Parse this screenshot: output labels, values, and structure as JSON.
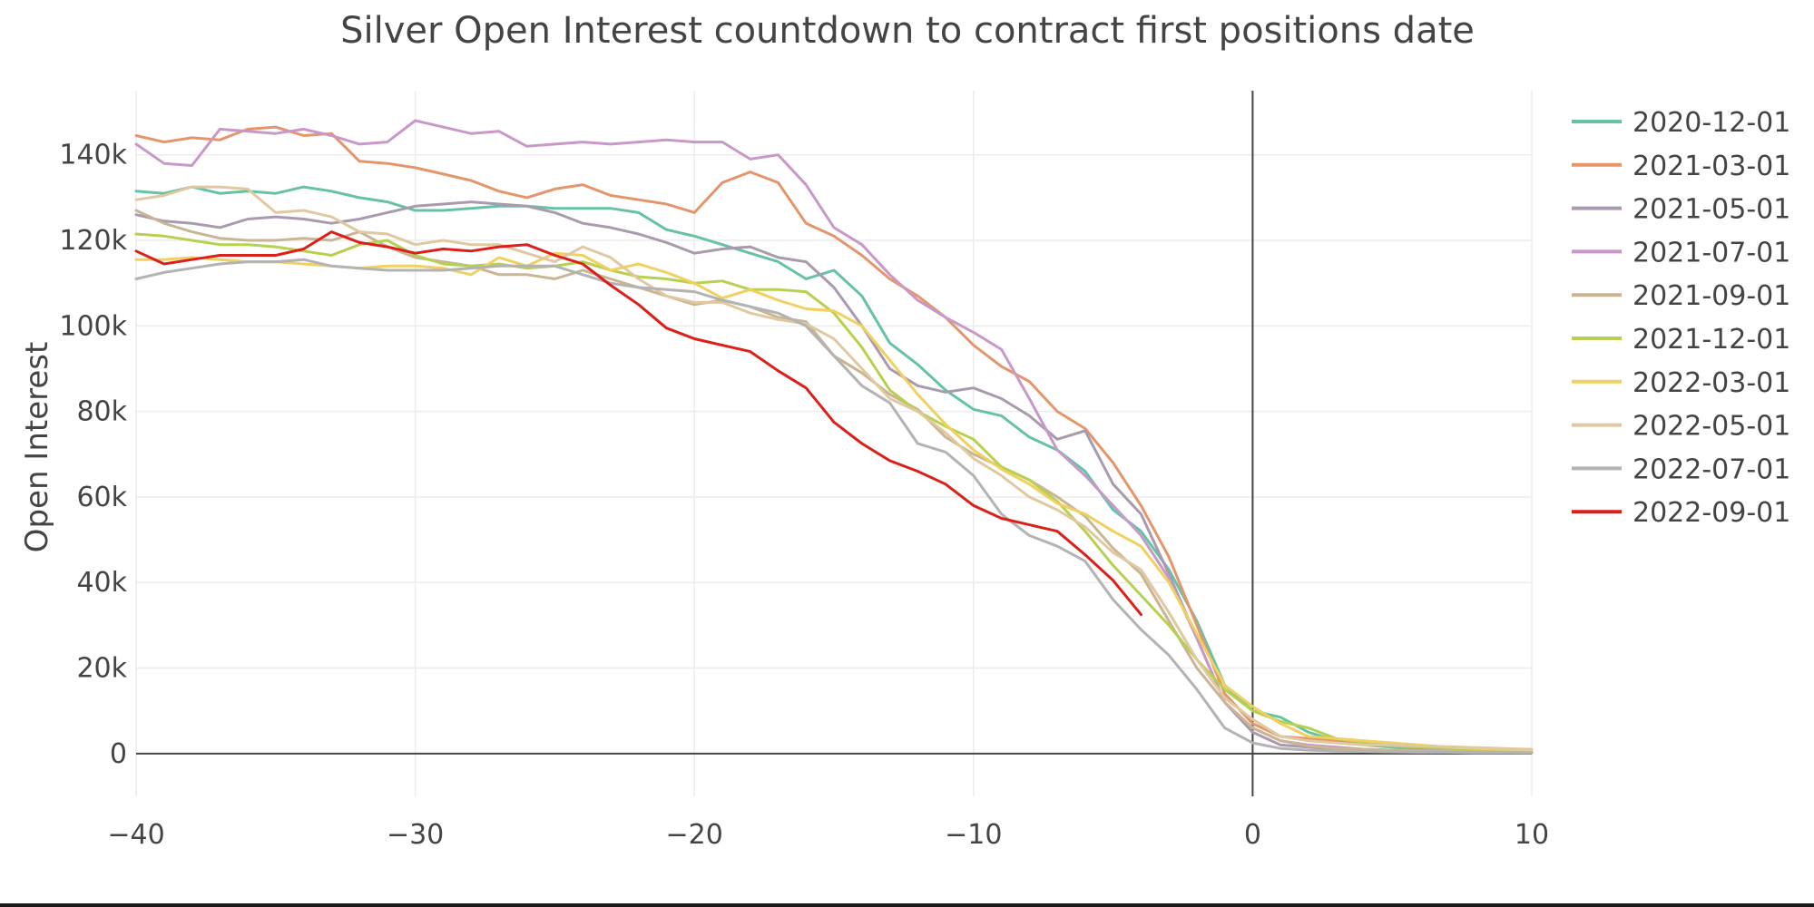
{
  "chart_data": {
    "type": "line",
    "title": "Silver Open Interest countdown to contract first positions date",
    "xlabel": "",
    "ylabel": "Open Interest",
    "xlim": [
      -40,
      10
    ],
    "ylim": [
      -10000,
      155000
    ],
    "x_ticks": [
      -40,
      -30,
      -20,
      -10,
      0,
      10
    ],
    "x_tick_labels": [
      "−40",
      "−30",
      "−20",
      "−10",
      "0",
      "10"
    ],
    "y_ticks": [
      0,
      20000,
      40000,
      60000,
      80000,
      100000,
      120000,
      140000
    ],
    "y_tick_labels": [
      "0",
      "20k",
      "40k",
      "60k",
      "80k",
      "100k",
      "120k",
      "140k"
    ],
    "grid": true,
    "legend_position": "right",
    "series": [
      {
        "name": "2020-12-01",
        "color": "#66c2a5",
        "x": [
          -40,
          -39,
          -38,
          -37,
          -36,
          -35,
          -34,
          -33,
          -32,
          -31,
          -30,
          -29,
          -28,
          -27,
          -26,
          -25,
          -24,
          -23,
          -22,
          -21,
          -20,
          -19,
          -18,
          -17,
          -16,
          -15,
          -14,
          -13,
          -12,
          -11,
          -10,
          -9,
          -8,
          -7,
          -6,
          -5,
          -4,
          -3,
          -2,
          -1,
          0,
          1,
          2,
          3,
          4,
          5,
          6,
          7,
          8,
          9,
          10
        ],
        "y": [
          131500,
          131000,
          132500,
          131000,
          131500,
          131000,
          132500,
          131500,
          130000,
          129000,
          127000,
          127000,
          127500,
          128000,
          128000,
          127500,
          127500,
          127500,
          126500,
          122500,
          121000,
          119000,
          117000,
          115000,
          111000,
          113000,
          107000,
          96000,
          91000,
          85000,
          80500,
          79000,
          74000,
          71000,
          66000,
          57000,
          52000,
          43000,
          31000,
          16000,
          10000,
          8500,
          5000,
          3000,
          2000,
          1500,
          1000,
          800,
          700,
          600,
          500
        ]
      },
      {
        "name": "2021-03-01",
        "color": "#e5956a",
        "x": [
          -40,
          -39,
          -38,
          -37,
          -36,
          -35,
          -34,
          -33,
          -32,
          -31,
          -30,
          -29,
          -28,
          -27,
          -26,
          -25,
          -24,
          -23,
          -22,
          -21,
          -20,
          -19,
          -18,
          -17,
          -16,
          -15,
          -14,
          -13,
          -12,
          -11,
          -10,
          -9,
          -8,
          -7,
          -6,
          -5,
          -4,
          -3,
          -2,
          -1,
          0,
          1,
          2,
          3,
          4,
          5,
          6,
          7,
          8,
          9,
          10
        ],
        "y": [
          144500,
          143000,
          144000,
          143500,
          146000,
          146500,
          144500,
          145000,
          138500,
          138000,
          137000,
          135500,
          134000,
          131500,
          130000,
          132000,
          133000,
          130500,
          129500,
          128500,
          126500,
          133500,
          136000,
          133500,
          124000,
          121000,
          116500,
          111000,
          107000,
          102000,
          95500,
          90500,
          87000,
          80000,
          76000,
          68000,
          58000,
          46000,
          30000,
          14000,
          7000,
          4000,
          3500,
          3000,
          2500,
          2000,
          1800,
          1500,
          1200,
          1000,
          800
        ]
      },
      {
        "name": "2021-05-01",
        "color": "#a99aae",
        "x": [
          -40,
          -39,
          -38,
          -37,
          -36,
          -35,
          -34,
          -33,
          -32,
          -31,
          -30,
          -29,
          -28,
          -27,
          -26,
          -25,
          -24,
          -23,
          -22,
          -21,
          -20,
          -19,
          -18,
          -17,
          -16,
          -15,
          -14,
          -13,
          -12,
          -11,
          -10,
          -9,
          -8,
          -7,
          -6,
          -5,
          -4,
          -3,
          -2,
          -1,
          0,
          1,
          2,
          3,
          4,
          5,
          6,
          7,
          8,
          9,
          10
        ],
        "y": [
          126000,
          124500,
          124000,
          123000,
          125000,
          125500,
          125000,
          124000,
          125000,
          126500,
          128000,
          128500,
          129000,
          128500,
          128000,
          126500,
          124000,
          123000,
          121500,
          119500,
          117000,
          118000,
          118500,
          116000,
          115000,
          109000,
          100000,
          90000,
          86000,
          84500,
          85500,
          83000,
          79000,
          73500,
          75500,
          63000,
          56000,
          42000,
          27000,
          12000,
          5000,
          2000,
          1500,
          1000,
          800,
          700,
          600,
          500,
          400,
          300,
          200
        ]
      },
      {
        "name": "2021-07-01",
        "color": "#c898c8",
        "x": [
          -40,
          -39,
          -38,
          -37,
          -36,
          -35,
          -34,
          -33,
          -32,
          -31,
          -30,
          -29,
          -28,
          -27,
          -26,
          -25,
          -24,
          -23,
          -22,
          -21,
          -20,
          -19,
          -18,
          -17,
          -16,
          -15,
          -14,
          -13,
          -12,
          -11,
          -10,
          -9,
          -8,
          -7,
          -6,
          -5,
          -4,
          -3,
          -2,
          -1,
          0,
          1,
          2,
          3,
          4,
          5,
          6,
          7,
          8,
          9,
          10
        ],
        "y": [
          142500,
          138000,
          137500,
          146000,
          145500,
          145000,
          146000,
          144500,
          142500,
          143000,
          148000,
          146500,
          145000,
          145500,
          142000,
          142500,
          143000,
          142500,
          143000,
          143500,
          143000,
          143000,
          139000,
          140000,
          133000,
          123000,
          119000,
          112000,
          106000,
          102000,
          98500,
          94500,
          83000,
          71000,
          65000,
          58000,
          51000,
          41000,
          27000,
          12000,
          6000,
          3000,
          2000,
          1500,
          1000,
          800,
          700,
          600,
          500,
          400,
          300
        ]
      },
      {
        "name": "2021-09-01",
        "color": "#c9b594",
        "x": [
          -40,
          -39,
          -38,
          -37,
          -36,
          -35,
          -34,
          -33,
          -32,
          -31,
          -30,
          -29,
          -28,
          -27,
          -26,
          -25,
          -24,
          -23,
          -22,
          -21,
          -20,
          -19,
          -18,
          -17,
          -16,
          -15,
          -14,
          -13,
          -12,
          -11,
          -10,
          -9,
          -8,
          -7,
          -6,
          -5,
          -4,
          -3,
          -2,
          -1,
          0,
          1,
          2,
          3,
          4,
          5,
          6,
          7,
          8,
          9,
          10
        ],
        "y": [
          127000,
          124000,
          122000,
          120500,
          120000,
          120000,
          120500,
          120000,
          122000,
          118500,
          116000,
          115000,
          114000,
          112000,
          112000,
          111000,
          113000,
          111000,
          109000,
          107000,
          105000,
          106000,
          104500,
          102000,
          101000,
          93000,
          89000,
          84000,
          80500,
          74000,
          70000,
          67000,
          64000,
          60000,
          55500,
          48000,
          42000,
          31000,
          20000,
          12000,
          6000,
          3000,
          1800,
          1200,
          1000,
          800,
          600,
          500,
          400,
          300,
          200
        ]
      },
      {
        "name": "2021-12-01",
        "color": "#b6d14f",
        "x": [
          -40,
          -39,
          -38,
          -37,
          -36,
          -35,
          -34,
          -33,
          -32,
          -31,
          -30,
          -29,
          -28,
          -27,
          -26,
          -25,
          -24,
          -23,
          -22,
          -21,
          -20,
          -19,
          -18,
          -17,
          -16,
          -15,
          -14,
          -13,
          -12,
          -11,
          -10,
          -9,
          -8,
          -7,
          -6,
          -5,
          -4,
          -3,
          -2,
          -1,
          0,
          1,
          2,
          3,
          4,
          5,
          6,
          7,
          8,
          9,
          10
        ],
        "y": [
          121500,
          121000,
          120000,
          119000,
          119000,
          118500,
          117500,
          116500,
          119000,
          120000,
          116500,
          114500,
          114000,
          114500,
          113500,
          114000,
          115000,
          113000,
          111500,
          111000,
          110000,
          110500,
          108500,
          108500,
          108000,
          103000,
          95000,
          85000,
          80000,
          76500,
          73500,
          67000,
          64000,
          59000,
          52000,
          44000,
          37000,
          30000,
          22000,
          15000,
          10000,
          7500,
          6000,
          3500,
          2500,
          1800,
          1500,
          1200,
          1000,
          800,
          600
        ]
      },
      {
        "name": "2022-03-01",
        "color": "#f0d060",
        "x": [
          -40,
          -39,
          -38,
          -37,
          -36,
          -35,
          -34,
          -33,
          -32,
          -31,
          -30,
          -29,
          -28,
          -27,
          -26,
          -25,
          -24,
          -23,
          -22,
          -21,
          -20,
          -19,
          -18,
          -17,
          -16,
          -15,
          -14,
          -13,
          -12,
          -11,
          -10,
          -9,
          -8,
          -7,
          -6,
          -5,
          -4,
          -3,
          -2,
          -1,
          0,
          1,
          2,
          3,
          4,
          5,
          6,
          7,
          8,
          9,
          10
        ],
        "y": [
          115500,
          115500,
          116000,
          115500,
          115000,
          115000,
          114500,
          114000,
          113500,
          114000,
          114000,
          113500,
          112000,
          116000,
          114000,
          117000,
          116500,
          113000,
          114500,
          112500,
          110000,
          106500,
          108500,
          106000,
          104000,
          103500,
          100000,
          92000,
          84000,
          77000,
          71000,
          66500,
          63000,
          58500,
          56000,
          52000,
          48500,
          40000,
          28000,
          16000,
          11000,
          7000,
          4000,
          3500,
          3000,
          2500,
          2000,
          1500,
          1200,
          1000,
          800
        ]
      },
      {
        "name": "2022-05-01",
        "color": "#e0c8a0",
        "x": [
          -40,
          -39,
          -38,
          -37,
          -36,
          -35,
          -34,
          -33,
          -32,
          -31,
          -30,
          -29,
          -28,
          -27,
          -26,
          -25,
          -24,
          -23,
          -22,
          -21,
          -20,
          -19,
          -18,
          -17,
          -16,
          -15,
          -14,
          -13,
          -12,
          -11,
          -10,
          -9,
          -8,
          -7,
          -6,
          -5,
          -4,
          -3,
          -2,
          -1,
          0,
          1,
          2,
          3,
          4,
          5,
          6,
          7,
          8,
          9,
          10
        ],
        "y": [
          129500,
          130500,
          132500,
          132500,
          132000,
          126500,
          127000,
          125500,
          122000,
          121500,
          119000,
          120000,
          119000,
          119000,
          117000,
          115000,
          118500,
          116000,
          111000,
          107000,
          105500,
          105500,
          103000,
          101500,
          100500,
          97000,
          90000,
          83000,
          80000,
          75000,
          69000,
          65000,
          60000,
          57000,
          53000,
          47000,
          43000,
          33000,
          22000,
          13000,
          8000,
          4000,
          3000,
          2500,
          2000,
          2000,
          1800,
          1600,
          1400,
          1200,
          1000
        ]
      },
      {
        "name": "2022-07-01",
        "color": "#b3b3b3",
        "x": [
          -40,
          -39,
          -38,
          -37,
          -36,
          -35,
          -34,
          -33,
          -32,
          -31,
          -30,
          -29,
          -28,
          -27,
          -26,
          -25,
          -24,
          -23,
          -22,
          -21,
          -20,
          -19,
          -18,
          -17,
          -16,
          -15,
          -14,
          -13,
          -12,
          -11,
          -10,
          -9,
          -8,
          -7,
          -6,
          -5,
          -4,
          -3,
          -2,
          -1,
          0,
          1,
          2,
          3,
          4,
          5,
          6,
          7,
          8,
          9,
          10
        ],
        "y": [
          111000,
          112500,
          113500,
          114500,
          115000,
          115000,
          115500,
          114000,
          113500,
          113000,
          113000,
          113000,
          113500,
          114000,
          114000,
          114000,
          112000,
          110000,
          109000,
          108500,
          108000,
          106000,
          104500,
          103000,
          100000,
          93000,
          86000,
          82000,
          72500,
          70500,
          65000,
          56000,
          51000,
          48500,
          45000,
          36000,
          29000,
          23000,
          15000,
          6000,
          2500,
          1200,
          800,
          600,
          500,
          400,
          300,
          300,
          200,
          200,
          200
        ]
      },
      {
        "name": "2022-09-01",
        "color": "#dd1f1a",
        "x": [
          -40,
          -39,
          -38,
          -37,
          -36,
          -35,
          -34,
          -33,
          -32,
          -31,
          -30,
          -29,
          -28,
          -27,
          -26,
          -25,
          -24,
          -23,
          -22,
          -21,
          -20,
          -19,
          -18,
          -17,
          -16,
          -15,
          -14,
          -13,
          -12,
          -11,
          -10,
          -9,
          -8,
          -7,
          -6,
          -5,
          -4
        ],
        "y": [
          117500,
          114500,
          115500,
          116500,
          116500,
          116500,
          118000,
          122000,
          119500,
          118500,
          117000,
          118000,
          117500,
          118500,
          119000,
          116500,
          114500,
          109500,
          105000,
          99500,
          97000,
          95500,
          94000,
          89500,
          85500,
          77500,
          72500,
          68500,
          66000,
          63000,
          58000,
          55000,
          53500,
          52000,
          46500,
          40500,
          32500
        ]
      }
    ]
  }
}
